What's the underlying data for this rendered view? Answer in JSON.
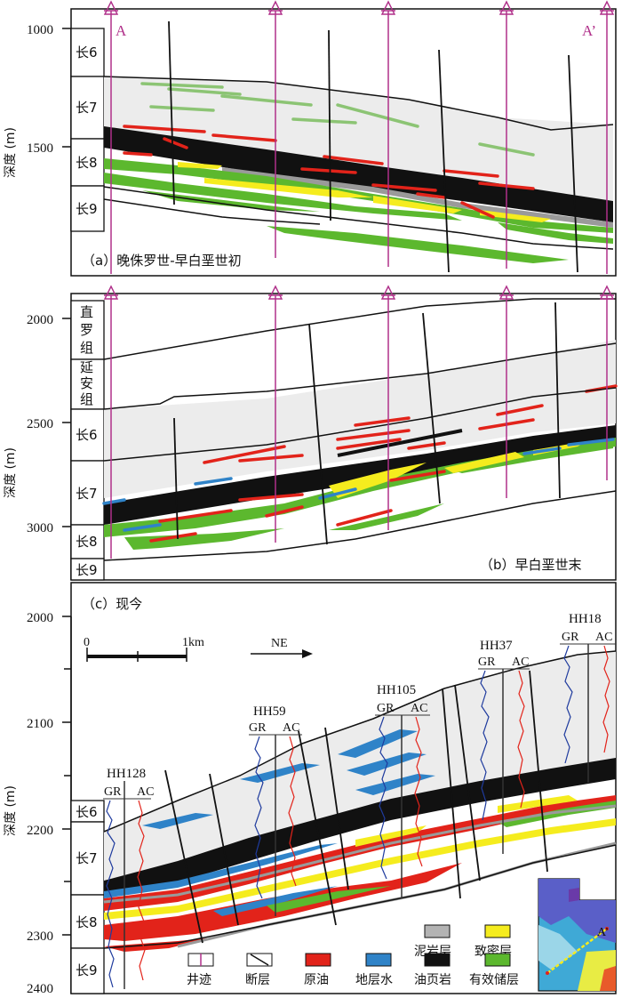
{
  "panel_a": {
    "ticks": [
      "1000",
      "1500"
    ],
    "axis_label": "深度 (m)",
    "zones": [
      "长6",
      "长7",
      "长8",
      "长9"
    ],
    "section_start": "A",
    "section_end": "A’",
    "caption": "（a）晚侏罗世-早白垩世初"
  },
  "panel_b": {
    "ticks": [
      "2000",
      "2500",
      "3000"
    ],
    "axis_label": "深度 (m)",
    "zones": [
      "直罗组",
      "延安组",
      "长6",
      "长7",
      "长8",
      "长9"
    ],
    "caption": "（b）早白垩世末"
  },
  "panel_c": {
    "ticks": [
      "2000",
      "2100",
      "2200",
      "2300",
      "2400"
    ],
    "axis_label": "深度 (m)",
    "zones": [
      "长6",
      "长7",
      "长8",
      "长9"
    ],
    "caption": "（c）现今",
    "scale": {
      "zero": "0",
      "end": "1km"
    },
    "direction": "NE",
    "wells": [
      {
        "name": "HH128",
        "gr": "GR",
        "ac": "AC"
      },
      {
        "name": "HH59",
        "gr": "GR",
        "ac": "AC"
      },
      {
        "name": "HH105",
        "gr": "GR",
        "ac": "AC"
      },
      {
        "name": "HH37",
        "gr": "GR",
        "ac": "AC"
      },
      {
        "name": "HH18",
        "gr": "GR",
        "ac": "AC"
      }
    ],
    "legend": [
      {
        "label": "泥岩层",
        "color": "#b3b3b3"
      },
      {
        "label": "致密层",
        "color": "#f5ec1e"
      },
      {
        "label": "井迹",
        "color": "#ffffff"
      },
      {
        "label": "断层",
        "color": "#ffffff"
      },
      {
        "label": "原油",
        "color": "#e2231a"
      },
      {
        "label": "地层水",
        "color": "#2f83c8"
      },
      {
        "label": "油页岩",
        "color": "#111111"
      },
      {
        "label": "有效储层",
        "color": "#5cb82e"
      }
    ],
    "map_labels": {
      "start": "A",
      "end": "A’"
    }
  }
}
